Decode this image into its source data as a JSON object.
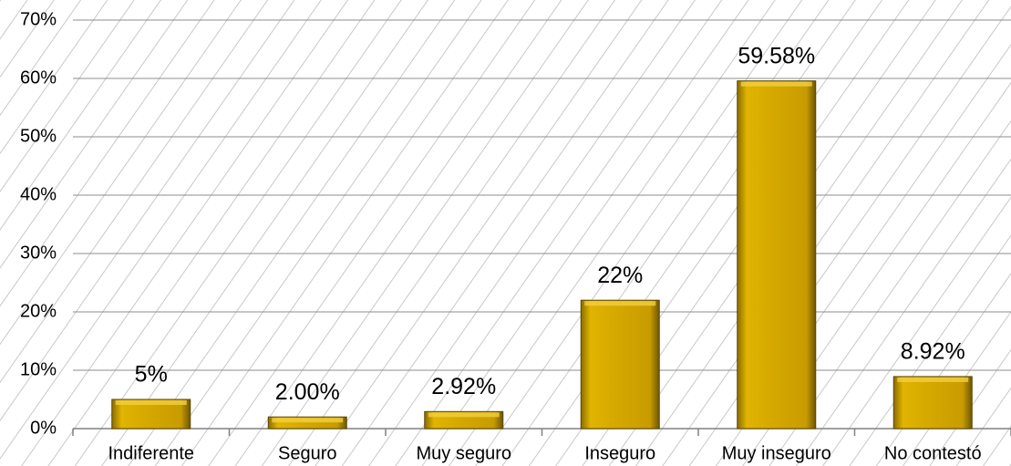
{
  "chart_data": {
    "type": "bar",
    "categories": [
      "Indiferente",
      "Seguro",
      "Muy seguro",
      "Inseguro",
      "Muy inseguro",
      "No contestó"
    ],
    "values": [
      5,
      2.0,
      2.92,
      22,
      59.58,
      8.92
    ],
    "value_labels": [
      "5%",
      "2.00%",
      "2.92%",
      "22%",
      "59.58%",
      "8.92%"
    ],
    "color": "#d4a600",
    "ylim": [
      0,
      70
    ],
    "yticks": [
      {
        "value": 0,
        "label": "0%"
      },
      {
        "value": 10,
        "label": "10%"
      },
      {
        "value": 20,
        "label": "20%"
      },
      {
        "value": 30,
        "label": "30%"
      },
      {
        "value": 40,
        "label": "40%"
      },
      {
        "value": 50,
        "label": "50%"
      },
      {
        "value": 60,
        "label": "60%"
      },
      {
        "value": 70,
        "label": "70%"
      }
    ],
    "grid": true
  }
}
